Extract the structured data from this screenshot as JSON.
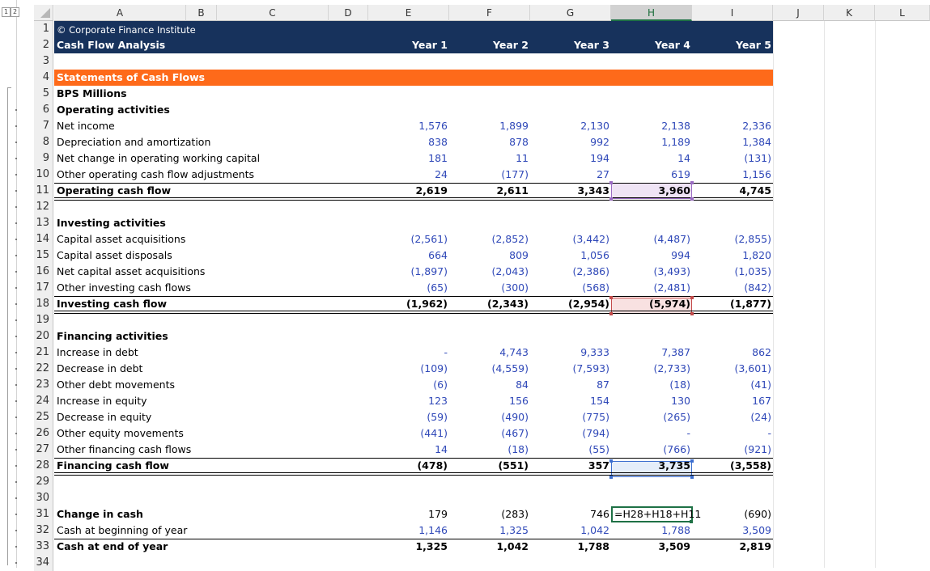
{
  "outline": {
    "levels": [
      "1",
      "2"
    ]
  },
  "columns": [
    "A",
    "B",
    "C",
    "D",
    "E",
    "F",
    "G",
    "H",
    "I",
    "J",
    "K",
    "L"
  ],
  "selected_column": "H",
  "colors": {
    "navy": "#17325c",
    "orange": "#fe6a1a",
    "value_blue": "#2f48b8",
    "select_green": "#1e7145",
    "hl_purple": "#9b6cc4",
    "hl_red": "#c34a4a",
    "hl_blue": "#3d6fcf"
  },
  "header": {
    "copyright": "© Corporate Finance Institute",
    "title": "Cash Flow Analysis",
    "years": [
      "Year 1",
      "Year 2",
      "Year 3",
      "Year 4",
      "Year 5"
    ]
  },
  "section_banner": "Statements of Cash Flows",
  "units": "BPS Millions",
  "operating": {
    "heading": "Operating activities",
    "rows": [
      {
        "label": "Net income",
        "values": [
          "1,576",
          "1,899",
          "2,130",
          "2,138",
          "2,336"
        ]
      },
      {
        "label": "Depreciation and amortization",
        "values": [
          "838",
          "878",
          "992",
          "1,189",
          "1,384"
        ]
      },
      {
        "label": "Net change in operating working capital",
        "values": [
          "181",
          "11",
          "194",
          "14",
          "(131)"
        ]
      },
      {
        "label": "Other operating cash flow adjustments",
        "values": [
          "24",
          "(177)",
          "27",
          "619",
          "1,156"
        ]
      }
    ],
    "total": {
      "label": "Operating cash flow",
      "values": [
        "2,619",
        "2,611",
        "3,343",
        "3,960",
        "4,745"
      ]
    }
  },
  "investing": {
    "heading": "Investing activities",
    "rows": [
      {
        "label": "Capital asset acquisitions",
        "values": [
          "(2,561)",
          "(2,852)",
          "(3,442)",
          "(4,487)",
          "(2,855)"
        ]
      },
      {
        "label": "Capital asset disposals",
        "values": [
          "664",
          "809",
          "1,056",
          "994",
          "1,820"
        ]
      },
      {
        "label": "Net capital asset acquisitions",
        "values": [
          "(1,897)",
          "(2,043)",
          "(2,386)",
          "(3,493)",
          "(1,035)"
        ]
      },
      {
        "label": "Other investing cash flows",
        "values": [
          "(65)",
          "(300)",
          "(568)",
          "(2,481)",
          "(842)"
        ]
      }
    ],
    "total": {
      "label": "Investing cash flow",
      "values": [
        "(1,962)",
        "(2,343)",
        "(2,954)",
        "(5,974)",
        "(1,877)"
      ]
    }
  },
  "financing": {
    "heading": "Financing activities",
    "rows": [
      {
        "label": "Increase in debt",
        "values": [
          "-",
          "4,743",
          "9,333",
          "7,387",
          "862"
        ]
      },
      {
        "label": "Decrease in debt",
        "values": [
          "(109)",
          "(4,559)",
          "(7,593)",
          "(2,733)",
          "(3,601)"
        ]
      },
      {
        "label": "Other debt movements",
        "values": [
          "(6)",
          "84",
          "87",
          "(18)",
          "(41)"
        ]
      },
      {
        "label": "Increase in equity",
        "values": [
          "123",
          "156",
          "154",
          "130",
          "167"
        ]
      },
      {
        "label": "Decrease in equity",
        "values": [
          "(59)",
          "(490)",
          "(775)",
          "(265)",
          "(24)"
        ]
      },
      {
        "label": "Other equity movements",
        "values": [
          "(441)",
          "(467)",
          "(794)",
          "-",
          "-"
        ]
      },
      {
        "label": "Other financing cash flows",
        "values": [
          "14",
          "(18)",
          "(55)",
          "(766)",
          "(921)"
        ]
      }
    ],
    "total": {
      "label": "Financing cash flow",
      "values": [
        "(478)",
        "(551)",
        "357",
        "3,735",
        "(3,558)"
      ]
    }
  },
  "summary": {
    "change": {
      "label": "Change in cash",
      "values": [
        "179",
        "(283)",
        "746",
        "=H28+H18+H11",
        "(690)"
      ]
    },
    "beginning": {
      "label": "Cash at beginning of year",
      "values": [
        "1,146",
        "1,325",
        "1,042",
        "1,788",
        "3,509"
      ]
    },
    "ending": {
      "label": "Cash at end of year",
      "values": [
        "1,325",
        "1,042",
        "1,788",
        "3,509",
        "2,819"
      ]
    }
  }
}
